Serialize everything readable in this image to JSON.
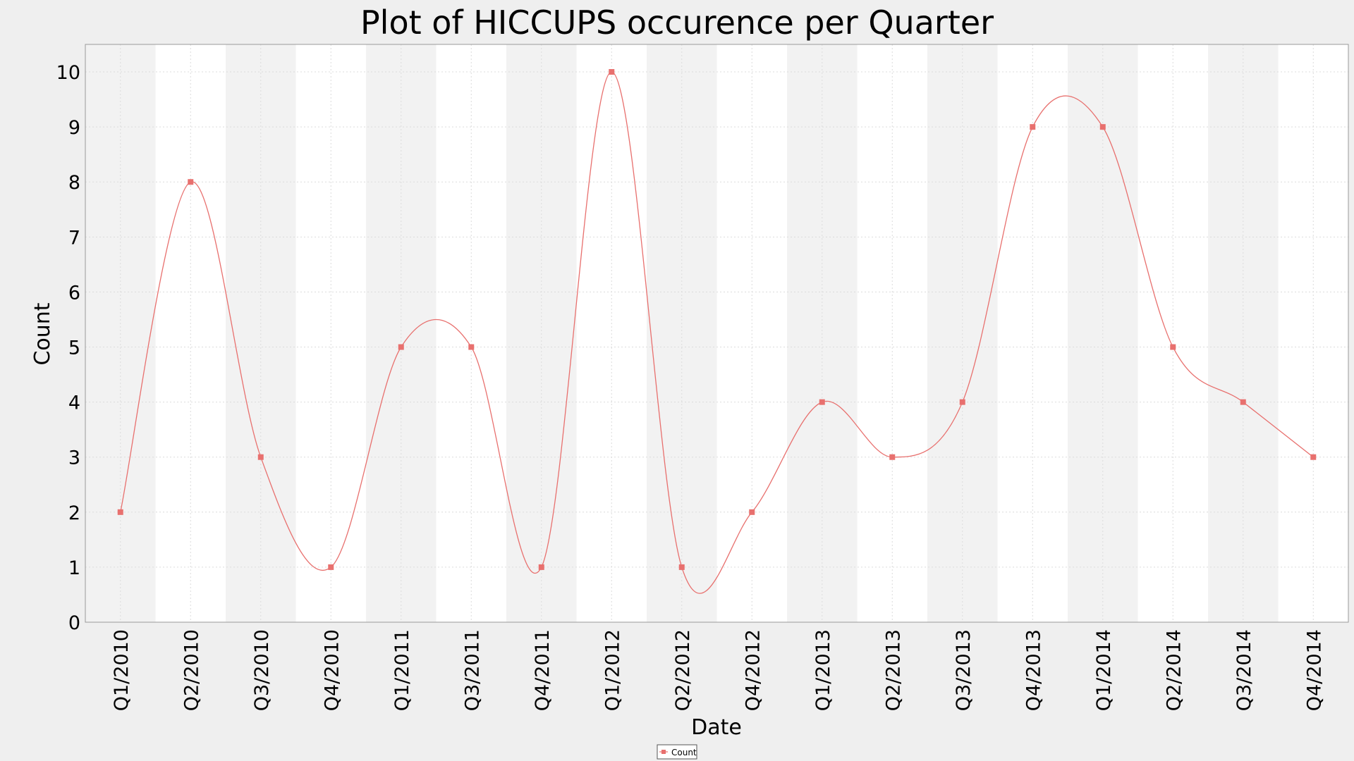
{
  "chart_data": {
    "type": "line",
    "title": "Plot of HICCUPS occurence per Quarter",
    "xlabel": "Date",
    "ylabel": "Count",
    "ylim": [
      0,
      10.5
    ],
    "yticks": [
      0,
      1,
      2,
      3,
      4,
      5,
      6,
      7,
      8,
      9,
      10
    ],
    "grid": true,
    "legend_placement": "bottom-center",
    "categories": [
      "Q1/2010",
      "Q2/2010",
      "Q3/2010",
      "Q4/2010",
      "Q1/2011",
      "Q3/2011",
      "Q4/2011",
      "Q1/2012",
      "Q2/2012",
      "Q4/2012",
      "Q1/2013",
      "Q2/2013",
      "Q3/2013",
      "Q4/2013",
      "Q1/2014",
      "Q2/2014",
      "Q3/2014",
      "Q4/2014"
    ],
    "series": [
      {
        "name": "Count",
        "color": "#e8706e",
        "values": [
          2,
          8,
          3,
          1,
          5,
          5,
          1,
          10,
          1,
          2,
          4,
          3,
          4,
          9,
          9,
          5,
          4,
          3
        ]
      }
    ]
  }
}
